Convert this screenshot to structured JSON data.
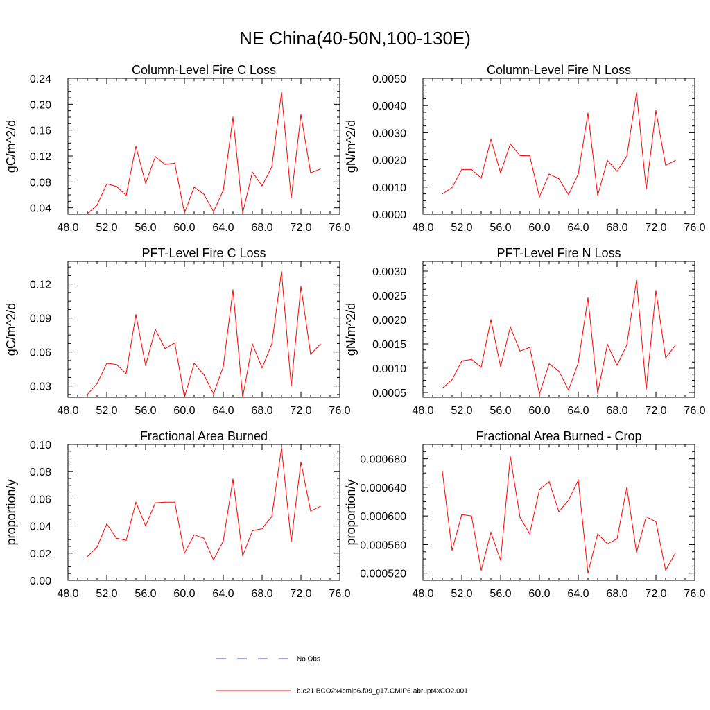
{
  "title": "NE China(40-50N,100-130E)",
  "colors": {
    "model": "#ff0000",
    "obs": "#4a4ae8",
    "axis": "#000000"
  },
  "legend": {
    "entries": [
      {
        "label": "No Obs",
        "style": "dashed",
        "color": "#4a4ae8"
      },
      {
        "label": "b.e21.BCO2x4cmip6.f09_g17.CMIP6-abrupt4xCO2.001",
        "style": "solid",
        "color": "#ff0000"
      }
    ]
  },
  "chart_data": [
    {
      "type": "line",
      "title": "Column-Level Fire C Loss",
      "xlabel": "",
      "ylabel": "gC/m^2/d",
      "xlim": [
        48,
        76
      ],
      "ylim": [
        0.03,
        0.24
      ],
      "xticks": [
        48,
        52,
        56,
        60,
        64,
        68,
        72,
        76
      ],
      "xtick_labels": [
        "48.0",
        "52.0",
        "56.0",
        "60.0",
        "64.0",
        "68.0",
        "72.0",
        "76.0"
      ],
      "yticks": [
        0.04,
        0.08,
        0.12,
        0.16,
        0.2,
        0.24
      ],
      "ytick_labels": [
        "0.04",
        "0.08",
        "0.12",
        "0.16",
        "0.20",
        "0.24"
      ],
      "series": [
        {
          "name": "b.e21.BCO2x4cmip6.f09_g17.CMIP6-abrupt4xCO2.001",
          "x": [
            50,
            51,
            52,
            53,
            54,
            55,
            56,
            57,
            58,
            59,
            60,
            61,
            62,
            63,
            64,
            65,
            66,
            67,
            68,
            69,
            70,
            71,
            72,
            73,
            74
          ],
          "values": [
            0.031,
            0.044,
            0.077,
            0.073,
            0.059,
            0.135,
            0.078,
            0.119,
            0.107,
            0.109,
            0.032,
            0.072,
            0.061,
            0.034,
            0.067,
            0.18,
            0.032,
            0.095,
            0.074,
            0.103,
            0.218,
            0.055,
            0.184,
            0.094,
            0.1
          ]
        }
      ]
    },
    {
      "type": "line",
      "title": "Column-Level Fire N Loss",
      "xlabel": "",
      "ylabel": "gN/m^2/d",
      "xlim": [
        48,
        76
      ],
      "ylim": [
        0.0,
        0.005
      ],
      "xticks": [
        48,
        52,
        56,
        60,
        64,
        68,
        72,
        76
      ],
      "xtick_labels": [
        "48.0",
        "52.0",
        "56.0",
        "60.0",
        "64.0",
        "68.0",
        "72.0",
        "76.0"
      ],
      "yticks": [
        0.0,
        0.001,
        0.002,
        0.003,
        0.004,
        0.005
      ],
      "ytick_labels": [
        "0.0000",
        "0.0010",
        "0.0020",
        "0.0030",
        "0.0040",
        "0.0050"
      ],
      "series": [
        {
          "name": "b.e21.BCO2x4cmip6.f09_g17.CMIP6-abrupt4xCO2.001",
          "x": [
            50,
            51,
            52,
            53,
            54,
            55,
            56,
            57,
            58,
            59,
            60,
            61,
            62,
            63,
            64,
            65,
            66,
            67,
            68,
            69,
            70,
            71,
            72,
            73,
            74
          ],
          "values": [
            0.00075,
            0.00098,
            0.00165,
            0.00165,
            0.00133,
            0.00276,
            0.00152,
            0.00259,
            0.00216,
            0.00215,
            0.00064,
            0.00148,
            0.00131,
            0.00072,
            0.00148,
            0.00372,
            0.00069,
            0.00198,
            0.00158,
            0.00213,
            0.00447,
            0.00092,
            0.00381,
            0.0018,
            0.00198
          ]
        }
      ]
    },
    {
      "type": "line",
      "title": "PFT-Level Fire C Loss",
      "xlabel": "",
      "ylabel": "gC/m^2/d",
      "xlim": [
        48,
        76
      ],
      "ylim": [
        0.02,
        0.14
      ],
      "xticks": [
        48,
        52,
        56,
        60,
        64,
        68,
        72,
        76
      ],
      "xtick_labels": [
        "48.0",
        "52.0",
        "56.0",
        "60.0",
        "64.0",
        "68.0",
        "72.0",
        "76.0"
      ],
      "yticks": [
        0.03,
        0.06,
        0.09,
        0.12
      ],
      "ytick_labels": [
        "0.03",
        "0.06",
        "0.09",
        "0.12"
      ],
      "series": [
        {
          "name": "b.e21.BCO2x4cmip6.f09_g17.CMIP6-abrupt4xCO2.001",
          "x": [
            50,
            51,
            52,
            53,
            54,
            55,
            56,
            57,
            58,
            59,
            60,
            61,
            62,
            63,
            64,
            65,
            66,
            67,
            68,
            69,
            70,
            71,
            72,
            73,
            74
          ],
          "values": [
            0.0225,
            0.032,
            0.05,
            0.049,
            0.041,
            0.093,
            0.048,
            0.08,
            0.063,
            0.068,
            0.02,
            0.05,
            0.04,
            0.023,
            0.047,
            0.115,
            0.02,
            0.067,
            0.046,
            0.067,
            0.131,
            0.03,
            0.118,
            0.058,
            0.067
          ]
        }
      ]
    },
    {
      "type": "line",
      "title": "PFT-Level Fire N Loss",
      "xlabel": "",
      "ylabel": "gN/m^2/d",
      "xlim": [
        48,
        76
      ],
      "ylim": [
        0.0004,
        0.0032
      ],
      "xticks": [
        48,
        52,
        56,
        60,
        64,
        68,
        72,
        76
      ],
      "xtick_labels": [
        "48.0",
        "52.0",
        "56.0",
        "60.0",
        "64.0",
        "68.0",
        "72.0",
        "76.0"
      ],
      "yticks": [
        0.0005,
        0.001,
        0.0015,
        0.002,
        0.0025,
        0.003
      ],
      "ytick_labels": [
        "0.0005",
        "0.0010",
        "0.0015",
        "0.0020",
        "0.0025",
        "0.0030"
      ],
      "series": [
        {
          "name": "b.e21.BCO2x4cmip6.f09_g17.CMIP6-abrupt4xCO2.001",
          "x": [
            50,
            51,
            52,
            53,
            54,
            55,
            56,
            57,
            58,
            59,
            60,
            61,
            62,
            63,
            64,
            65,
            66,
            67,
            68,
            69,
            70,
            71,
            72,
            73,
            74
          ],
          "values": [
            0.00059,
            0.00076,
            0.00115,
            0.00118,
            0.00102,
            0.002,
            0.00103,
            0.00185,
            0.00135,
            0.00143,
            0.00047,
            0.00109,
            0.00094,
            0.00055,
            0.00111,
            0.00245,
            0.00048,
            0.00149,
            0.00106,
            0.00148,
            0.00281,
            0.00056,
            0.0026,
            0.00121,
            0.00147
          ]
        }
      ]
    },
    {
      "type": "line",
      "title": "Fractional Area Burned",
      "xlabel": "",
      "ylabel": "proportion/y",
      "xlim": [
        48,
        76
      ],
      "ylim": [
        0.0,
        0.1
      ],
      "xticks": [
        48,
        52,
        56,
        60,
        64,
        68,
        72,
        76
      ],
      "xtick_labels": [
        "48.0",
        "52.0",
        "56.0",
        "60.0",
        "64.0",
        "68.0",
        "72.0",
        "76.0"
      ],
      "yticks": [
        0.0,
        0.02,
        0.04,
        0.06,
        0.08,
        0.1
      ],
      "ytick_labels": [
        "0.00",
        "0.02",
        "0.04",
        "0.06",
        "0.08",
        "0.10"
      ],
      "series": [
        {
          "name": "b.e21.BCO2x4cmip6.f09_g17.CMIP6-abrupt4xCO2.001",
          "x": [
            50,
            51,
            52,
            53,
            54,
            55,
            56,
            57,
            58,
            59,
            60,
            61,
            62,
            63,
            64,
            65,
            66,
            67,
            68,
            69,
            70,
            71,
            72,
            73,
            74
          ],
          "values": [
            0.0175,
            0.0245,
            0.0415,
            0.031,
            0.0295,
            0.0575,
            0.04,
            0.057,
            0.0575,
            0.0575,
            0.02,
            0.0335,
            0.031,
            0.015,
            0.029,
            0.0745,
            0.018,
            0.0365,
            0.038,
            0.047,
            0.0975,
            0.0285,
            0.087,
            0.051,
            0.0545
          ]
        }
      ]
    },
    {
      "type": "line",
      "title": "Fractional Area Burned - Crop",
      "xlabel": "",
      "ylabel": "proportion/y",
      "xlim": [
        48,
        76
      ],
      "ylim": [
        0.00051,
        0.0007
      ],
      "xticks": [
        48,
        52,
        56,
        60,
        64,
        68,
        72,
        76
      ],
      "xtick_labels": [
        "48.0",
        "52.0",
        "56.0",
        "60.0",
        "64.0",
        "68.0",
        "72.0",
        "76.0"
      ],
      "yticks": [
        0.00052,
        0.00056,
        0.0006,
        0.00064,
        0.00068
      ],
      "ytick_labels": [
        "0.000520",
        "0.000560",
        "0.000600",
        "0.000640",
        "0.000680"
      ],
      "series": [
        {
          "name": "b.e21.BCO2x4cmip6.f09_g17.CMIP6-abrupt4xCO2.001",
          "x": [
            50,
            51,
            52,
            53,
            54,
            55,
            56,
            57,
            58,
            59,
            60,
            61,
            62,
            63,
            64,
            65,
            66,
            67,
            68,
            69,
            70,
            71,
            72,
            73,
            74
          ],
          "values": [
            0.000662,
            0.000552,
            0.000602,
            0.0006,
            0.000524,
            0.000577,
            0.000538,
            0.000683,
            0.000598,
            0.000575,
            0.000637,
            0.000648,
            0.000606,
            0.000622,
            0.00065,
            0.00052,
            0.000575,
            0.000561,
            0.000568,
            0.00064,
            0.000549,
            0.000599,
            0.000592,
            0.000524,
            0.000548
          ]
        }
      ]
    }
  ]
}
